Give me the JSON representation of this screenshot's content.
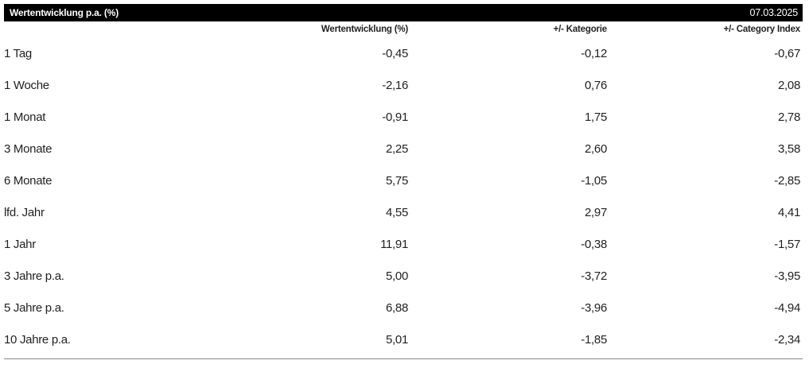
{
  "header": {
    "title": "Wertentwicklung p.a. (%)",
    "date": "07.03.2025"
  },
  "columns": [
    "",
    "Wertentwicklung (%)",
    "+/- Kategorie",
    "+/- Category Index"
  ],
  "rows": [
    {
      "period": "1 Tag",
      "performance": "-0,45",
      "vs_category": "-0,12",
      "vs_index": "-0,67"
    },
    {
      "period": "1 Woche",
      "performance": "-2,16",
      "vs_category": "0,76",
      "vs_index": "2,08"
    },
    {
      "period": "1 Monat",
      "performance": "-0,91",
      "vs_category": "1,75",
      "vs_index": "2,78"
    },
    {
      "period": "3 Monate",
      "performance": "2,25",
      "vs_category": "2,60",
      "vs_index": "3,58"
    },
    {
      "period": "6 Monate",
      "performance": "5,75",
      "vs_category": "-1,05",
      "vs_index": "-2,85"
    },
    {
      "period": "lfd. Jahr",
      "performance": "4,55",
      "vs_category": "2,97",
      "vs_index": "4,41"
    },
    {
      "period": "1 Jahr",
      "performance": "11,91",
      "vs_category": "-0,38",
      "vs_index": "-1,57"
    },
    {
      "period": "3 Jahre p.a.",
      "performance": "5,00",
      "vs_category": "-3,72",
      "vs_index": "-3,95"
    },
    {
      "period": "5 Jahre p.a.",
      "performance": "6,88",
      "vs_category": "-3,96",
      "vs_index": "-4,94"
    },
    {
      "period": "10 Jahre p.a.",
      "performance": "5,01",
      "vs_category": "-1,85",
      "vs_index": "-2,34"
    }
  ]
}
